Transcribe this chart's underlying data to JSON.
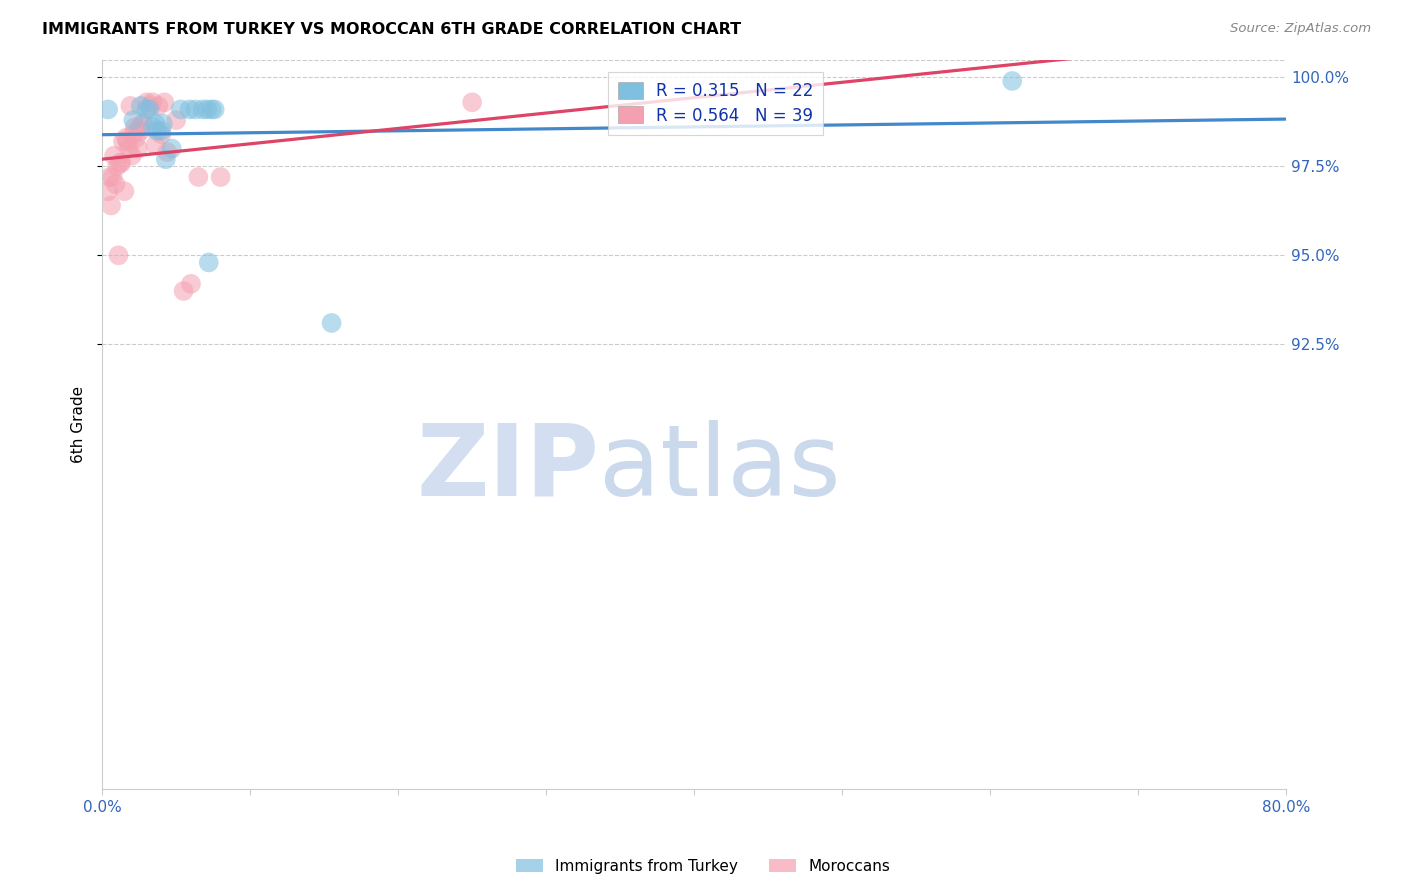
{
  "title": "IMMIGRANTS FROM TURKEY VS MOROCCAN 6TH GRADE CORRELATION CHART",
  "source": "Source: ZipAtlas.com",
  "ylabel": "6th Grade",
  "xlim": [
    0.0,
    0.8
  ],
  "ylim": [
    0.8,
    1.005
  ],
  "turkey_color": "#7fbfdf",
  "morocco_color": "#f4a0b0",
  "turkey_line_color": "#4488cc",
  "morocco_line_color": "#dd4466",
  "turkey_R": "0.315",
  "turkey_N": "22",
  "morocco_R": "0.564",
  "morocco_N": "39",
  "legend_label_turkey": "Immigrants from Turkey",
  "legend_label_morocco": "Moroccans",
  "ytick_positions": [
    0.925,
    0.95,
    0.975,
    1.0
  ],
  "ytick_labels": [
    "92.5%",
    "95.0%",
    "97.5%",
    "100.0%"
  ],
  "xtick_positions": [
    0.0,
    0.1,
    0.2,
    0.3,
    0.4,
    0.5,
    0.6,
    0.7,
    0.8
  ],
  "xtick_labels": [
    "0.0%",
    "",
    "",
    "",
    "",
    "",
    "",
    "",
    "80.0%"
  ],
  "turkey_x": [
    0.004,
    0.021,
    0.026,
    0.03,
    0.032,
    0.034,
    0.036,
    0.037,
    0.04,
    0.041,
    0.043,
    0.047,
    0.053,
    0.059,
    0.063,
    0.068,
    0.071,
    0.072,
    0.074,
    0.076,
    0.155,
    0.615
  ],
  "turkey_y": [
    0.991,
    0.988,
    0.992,
    0.991,
    0.991,
    0.986,
    0.987,
    0.985,
    0.985,
    0.987,
    0.977,
    0.98,
    0.991,
    0.991,
    0.991,
    0.991,
    0.991,
    0.948,
    0.991,
    0.991,
    0.931,
    0.999
  ],
  "morocco_x": [
    0.004,
    0.005,
    0.006,
    0.007,
    0.008,
    0.009,
    0.01,
    0.011,
    0.012,
    0.013,
    0.014,
    0.015,
    0.016,
    0.017,
    0.018,
    0.019,
    0.02,
    0.021,
    0.022,
    0.023,
    0.024,
    0.025,
    0.026,
    0.027,
    0.028,
    0.03,
    0.032,
    0.034,
    0.036,
    0.038,
    0.04,
    0.042,
    0.044,
    0.05,
    0.055,
    0.06,
    0.065,
    0.08,
    0.25
  ],
  "morocco_y": [
    0.968,
    0.972,
    0.964,
    0.972,
    0.978,
    0.97,
    0.975,
    0.95,
    0.976,
    0.976,
    0.982,
    0.968,
    0.983,
    0.982,
    0.98,
    0.992,
    0.978,
    0.984,
    0.986,
    0.983,
    0.98,
    0.986,
    0.985,
    0.987,
    0.987,
    0.993,
    0.992,
    0.993,
    0.981,
    0.992,
    0.984,
    0.993,
    0.979,
    0.988,
    0.94,
    0.942,
    0.972,
    0.972,
    0.993
  ],
  "watermark_zip_color": "#c8d8ee",
  "watermark_atlas_color": "#a8c0de"
}
